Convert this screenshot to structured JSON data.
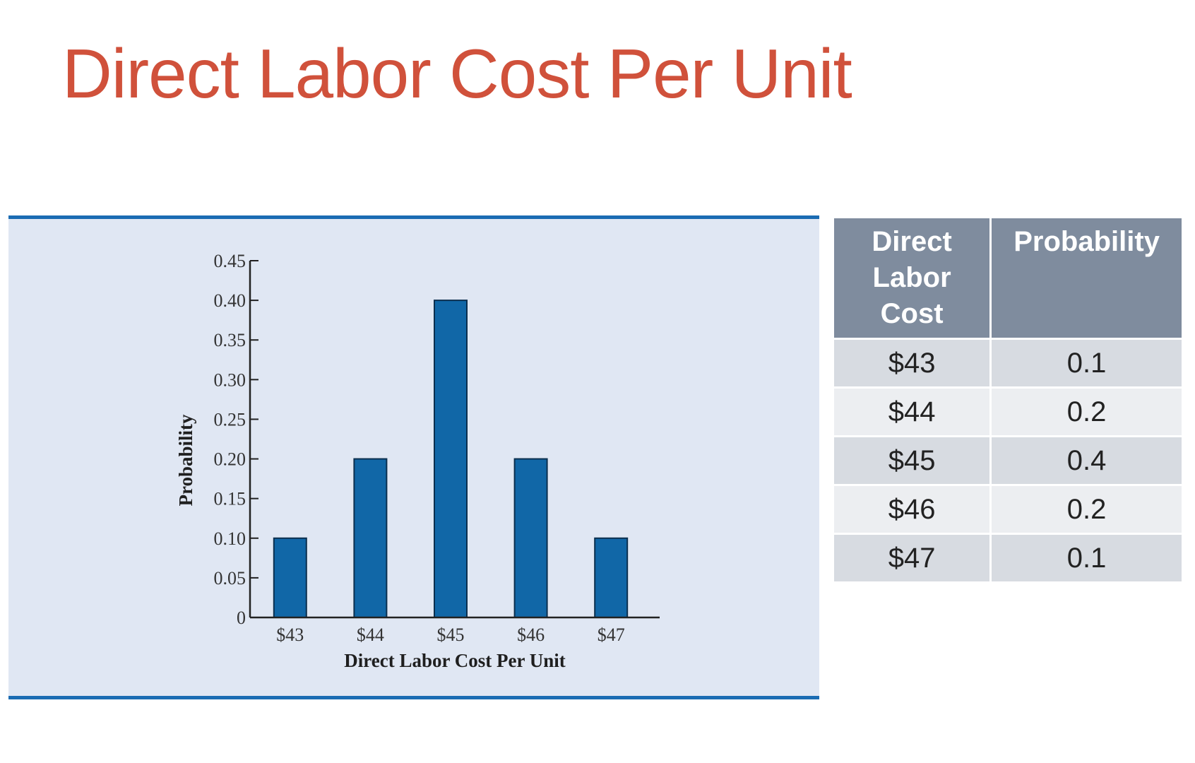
{
  "slide": {
    "title": "Direct Labor Cost Per Unit"
  },
  "chart_data": {
    "type": "bar",
    "categories": [
      "$43",
      "$44",
      "$45",
      "$46",
      "$47"
    ],
    "values": [
      0.1,
      0.2,
      0.4,
      0.2,
      0.1
    ],
    "xlabel": "Direct Labor Cost Per Unit",
    "ylabel": "Probability",
    "ylim": [
      0,
      0.45
    ],
    "yticks": [
      "0",
      "0.05",
      "0.10",
      "0.15",
      "0.20",
      "0.25",
      "0.30",
      "0.35",
      "0.40",
      "0.45"
    ],
    "grid": false,
    "bar_color": "#1167a7",
    "panel_background": "#e0e7f3"
  },
  "table": {
    "headers": [
      "Direct Labor Cost",
      "Probability"
    ],
    "rows": [
      [
        "$43",
        "0.1"
      ],
      [
        "$44",
        "0.2"
      ],
      [
        "$45",
        "0.4"
      ],
      [
        "$46",
        "0.2"
      ],
      [
        "$47",
        "0.1"
      ]
    ],
    "header_color": "#7f8c9e"
  }
}
